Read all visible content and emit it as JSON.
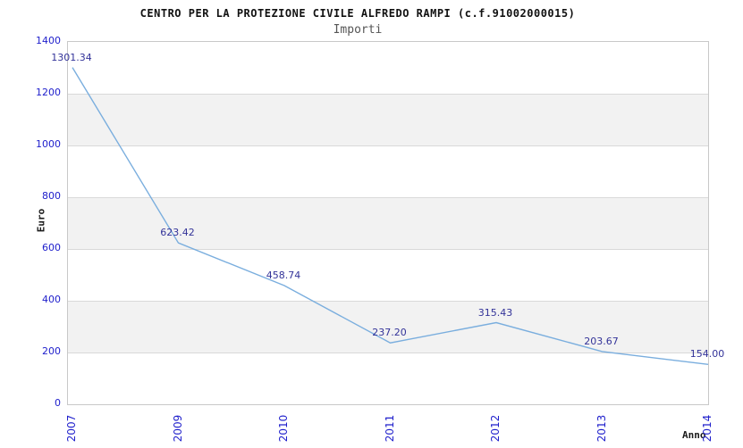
{
  "header": {
    "title": "CENTRO PER LA PROTEZIONE CIVILE ALFREDO RAMPI (c.f.91002000015)",
    "subtitle": "Importi"
  },
  "chart_data": {
    "type": "line",
    "title": "CENTRO PER LA PROTEZIONE CIVILE ALFREDO RAMPI (c.f.91002000015)",
    "subtitle": "Importi",
    "categories": [
      "2007",
      "2009",
      "2010",
      "2011",
      "2012",
      "2013",
      "2014"
    ],
    "values": [
      1301.34,
      623.42,
      458.74,
      237.2,
      315.43,
      203.67,
      154.0
    ],
    "point_labels": [
      "1301.34",
      "623.42",
      "458.74",
      "237.20",
      "315.43",
      "203.67",
      "154.00"
    ],
    "xlabel": "Anno",
    "ylabel": "Euro",
    "ylim": [
      0,
      1400
    ],
    "ytick_step": 200,
    "ytick_labels": [
      "1400",
      "1200",
      "1000",
      "800",
      "600",
      "400",
      "200",
      "0"
    ],
    "grid": "horizontal-bands",
    "legend": null,
    "colors": {
      "line": "#7aaede",
      "tick_label": "#2020cc",
      "data_label": "#333399",
      "band_fill": "#f2f2f2",
      "gridline": "#d9d9d9",
      "plot_border": "#c8c8c8",
      "title": "#111111",
      "subtitle": "#555555",
      "axis_title": "#1a1a1a"
    }
  }
}
